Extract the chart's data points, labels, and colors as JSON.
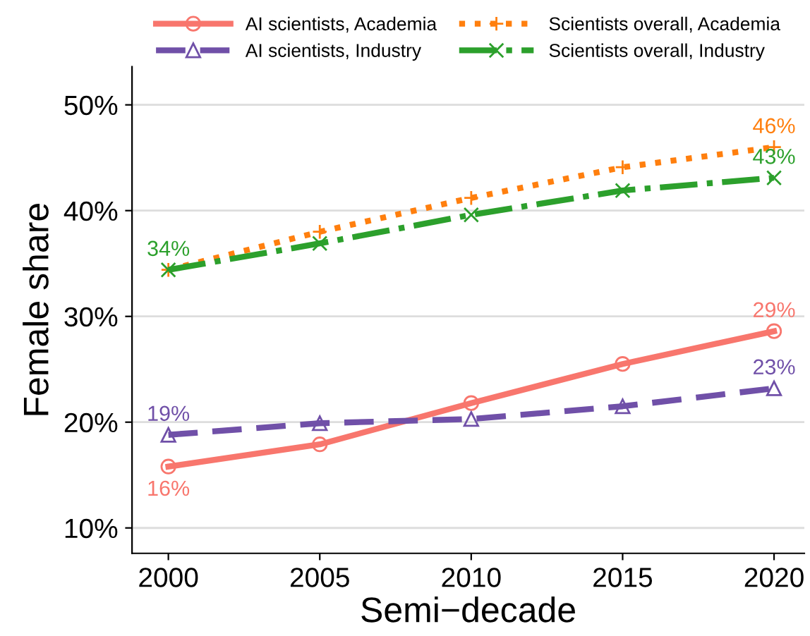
{
  "chart_data": {
    "type": "line",
    "xlabel": "Semi−decade",
    "ylabel": "Female share",
    "x": [
      2000,
      2005,
      2010,
      2015,
      2020
    ],
    "xlim": [
      1998.8,
      2021
    ],
    "xticks": [
      2000,
      2005,
      2010,
      2015,
      2020
    ],
    "ylim": [
      7.6,
      53.6
    ],
    "yticks": [
      {
        "value": 10,
        "label": "10%"
      },
      {
        "value": 20,
        "label": "20%"
      },
      {
        "value": 30,
        "label": "30%"
      },
      {
        "value": 40,
        "label": "40%"
      },
      {
        "value": 50,
        "label": "50%"
      }
    ],
    "grid": "y",
    "legend": "top",
    "series": [
      {
        "name": "AI scientists, Academia",
        "color": "#f8766d",
        "marker": "circle",
        "line_style": "solid",
        "values": [
          15.8,
          17.9,
          21.8,
          25.5,
          28.6
        ],
        "value_labels": [
          "16%",
          null,
          null,
          null,
          "29%"
        ]
      },
      {
        "name": "AI scientists, Industry",
        "color": "#7050a8",
        "marker": "triangle",
        "line_style": "dashed",
        "values": [
          18.8,
          19.9,
          20.3,
          21.5,
          23.2
        ],
        "value_labels": [
          "19%",
          null,
          null,
          null,
          "23%"
        ]
      },
      {
        "name": "Scientists overall, Academia",
        "color": "#ff7f0e",
        "marker": "plus",
        "line_style": "dotted",
        "values": [
          34.4,
          38.0,
          41.2,
          44.1,
          46.0
        ],
        "value_labels": [
          null,
          null,
          null,
          null,
          "46%"
        ]
      },
      {
        "name": "Scientists overall, Industry",
        "color": "#2ca02c",
        "marker": "cross",
        "line_style": "dashdot",
        "values": [
          34.4,
          36.9,
          39.6,
          41.9,
          43.1
        ],
        "value_labels": [
          "34%",
          null,
          null,
          null,
          "43%"
        ]
      }
    ]
  }
}
